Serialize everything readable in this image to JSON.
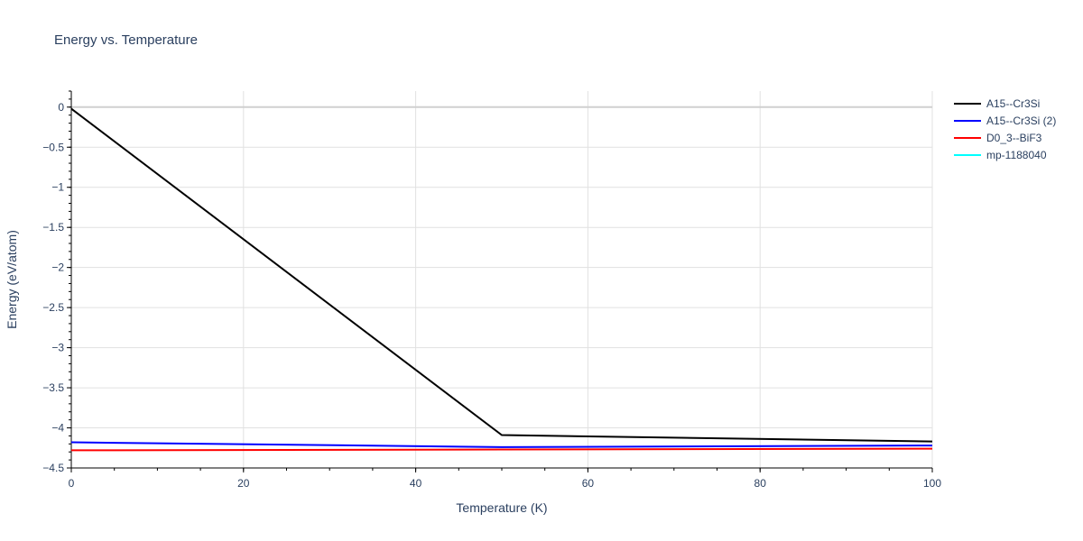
{
  "chart_data": {
    "type": "line",
    "title": "Energy vs. Temperature",
    "xlabel": "Temperature (K)",
    "ylabel": "Energy (eV/atom)",
    "xlim": [
      0,
      100
    ],
    "ylim": [
      -4.5,
      0.2
    ],
    "xticks": [
      0,
      20,
      40,
      60,
      80,
      100
    ],
    "xtick_labels": [
      "0",
      "20",
      "40",
      "60",
      "80",
      "100"
    ],
    "yticks": [
      0,
      -0.5,
      -1,
      -1.5,
      -2,
      -2.5,
      -3,
      -3.5,
      -4,
      -4.5
    ],
    "ytick_labels": [
      "0",
      "−0.5",
      "−1",
      "−1.5",
      "−2",
      "−2.5",
      "−3",
      "−3.5",
      "−4",
      "−4.5"
    ],
    "grid": true,
    "legend_position": "top-right",
    "series": [
      {
        "name": "A15--Cr3Si",
        "color": "#000000",
        "x": [
          0,
          50,
          100
        ],
        "y": [
          -0.02,
          -4.09,
          -4.17
        ]
      },
      {
        "name": "A15--Cr3Si (2)",
        "color": "#0000ff",
        "x": [
          0,
          50,
          100
        ],
        "y": [
          -4.18,
          -4.24,
          -4.22
        ]
      },
      {
        "name": "D0_3--BiF3",
        "color": "#ff0000",
        "x": [
          0,
          50,
          100
        ],
        "y": [
          -4.28,
          -4.27,
          -4.26
        ]
      },
      {
        "name": "mp-1188040",
        "color": "#00ffff",
        "x": [],
        "y": []
      }
    ]
  }
}
